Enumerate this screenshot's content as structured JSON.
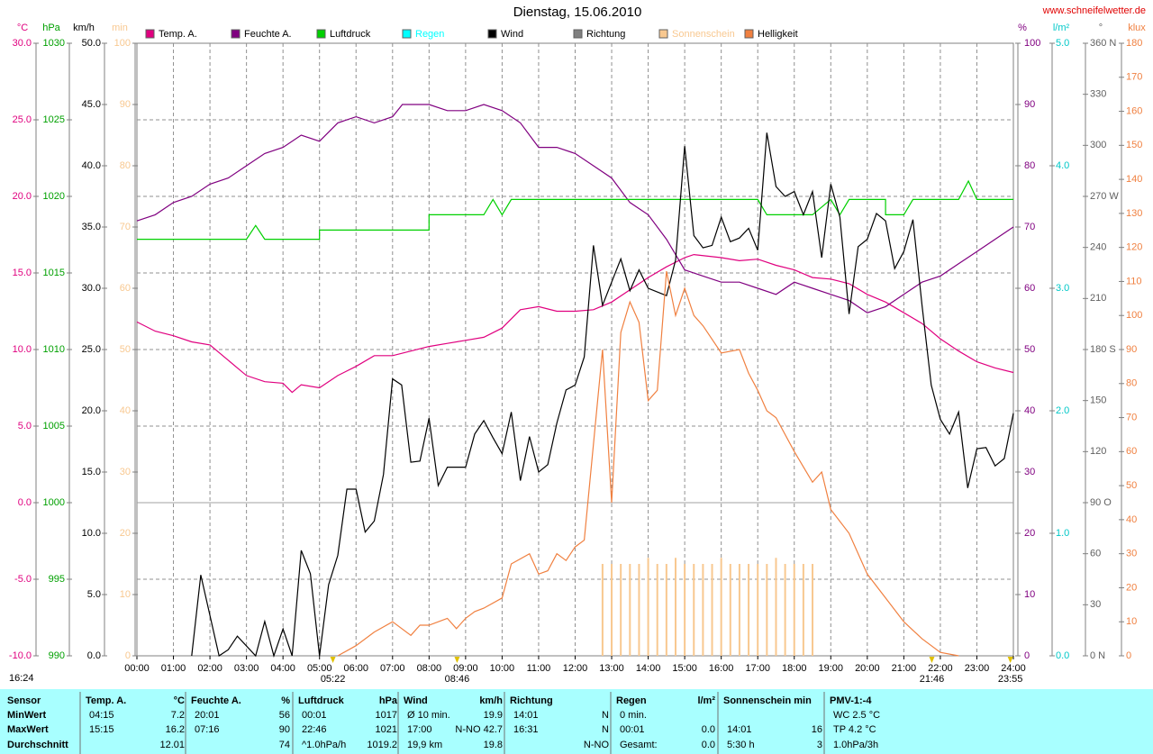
{
  "header": {
    "url": "www.schneifelwetter.de",
    "left_note": "16:24"
  },
  "chart_data": {
    "type": "line",
    "title": "Dienstag, 15.06.2010",
    "grid": true,
    "xlim": [
      0,
      24
    ],
    "xticks": [
      {
        "value": 0,
        "label": "00:00"
      },
      {
        "value": 1,
        "label": "01:00"
      },
      {
        "value": 2,
        "label": "02:00"
      },
      {
        "value": 3,
        "label": "03:00"
      },
      {
        "value": 4,
        "label": "04:00"
      },
      {
        "value": 5,
        "label": "05:00"
      },
      {
        "value": 6,
        "label": "06:00"
      },
      {
        "value": 7,
        "label": "07:00"
      },
      {
        "value": 8,
        "label": "08:00"
      },
      {
        "value": 9,
        "label": "09:00"
      },
      {
        "value": 10,
        "label": "10:00"
      },
      {
        "value": 11,
        "label": "11:00"
      },
      {
        "value": 12,
        "label": "12:00"
      },
      {
        "value": 13,
        "label": "13:00"
      },
      {
        "value": 14,
        "label": "14:00"
      },
      {
        "value": 15,
        "label": "15:00"
      },
      {
        "value": 16,
        "label": "16:00"
      },
      {
        "value": 17,
        "label": "17:00"
      },
      {
        "value": 18,
        "label": "18:00"
      },
      {
        "value": 19,
        "label": "19:00"
      },
      {
        "value": 20,
        "label": "20:00"
      },
      {
        "value": 21,
        "label": "21:00"
      },
      {
        "value": 22,
        "label": "22:00"
      },
      {
        "value": 23,
        "label": "23:00"
      },
      {
        "value": 24,
        "label": "24:00"
      }
    ],
    "axes": [
      {
        "unit": "°C",
        "color": "#e0007f",
        "lim": [
          -10,
          30
        ],
        "ticks": [
          {
            "value": -10,
            "label": "-10.0"
          },
          {
            "value": -5,
            "label": "-5.0"
          },
          {
            "value": 0,
            "label": "0.0"
          },
          {
            "value": 5,
            "label": "5.0"
          },
          {
            "value": 10,
            "label": "10.0"
          },
          {
            "value": 15,
            "label": "15.0"
          },
          {
            "value": 20,
            "label": "20.0"
          },
          {
            "value": 25,
            "label": "25.0"
          },
          {
            "value": 30,
            "label": "30.0"
          }
        ]
      },
      {
        "unit": "hPa",
        "color": "#00a000",
        "lim": [
          990,
          1030
        ],
        "ticks": [
          990,
          995,
          1000,
          1005,
          1010,
          1015,
          1020,
          1025,
          1030
        ]
      },
      {
        "unit": "km/h",
        "color": "#000000",
        "lim": [
          0,
          50
        ],
        "ticks": [
          {
            "value": 0,
            "label": "0.0"
          },
          {
            "value": 5,
            "label": "5.0"
          },
          {
            "value": 10,
            "label": "10.0"
          },
          {
            "value": 15,
            "label": "15.0"
          },
          {
            "value": 20,
            "label": "20.0"
          },
          {
            "value": 25,
            "label": "25.0"
          },
          {
            "value": 30,
            "label": "30.0"
          },
          {
            "value": 35,
            "label": "35.0"
          },
          {
            "value": 40,
            "label": "40.0"
          },
          {
            "value": 45,
            "label": "45.0"
          },
          {
            "value": 50,
            "label": "50.0"
          }
        ]
      },
      {
        "unit": "min",
        "color": "#f8c890",
        "lim": [
          0,
          100
        ],
        "ticks": [
          0,
          10,
          20,
          30,
          40,
          50,
          60,
          70,
          80,
          90,
          100
        ]
      },
      {
        "unit": "%",
        "color": "#800080",
        "lim": [
          0,
          100
        ],
        "ticks": [
          0,
          10,
          20,
          30,
          40,
          50,
          60,
          70,
          80,
          90,
          100
        ]
      },
      {
        "unit": "l/m²",
        "color": "#00c8c8",
        "lim": [
          0,
          5
        ],
        "ticks": [
          {
            "value": 0,
            "label": "0.0"
          },
          {
            "value": 1,
            "label": "1.0"
          },
          {
            "value": 2,
            "label": "2.0"
          },
          {
            "value": 3,
            "label": "3.0"
          },
          {
            "value": 4,
            "label": "4.0"
          },
          {
            "value": 5,
            "label": "5.0"
          }
        ]
      },
      {
        "unit": "°",
        "color": "#606060",
        "lim": [
          0,
          360
        ],
        "ticks": [
          {
            "value": 0,
            "label": "0  N"
          },
          30,
          60,
          {
            "value": 90,
            "label": "90  O"
          },
          120,
          150,
          {
            "value": 180,
            "label": "180  S"
          },
          210,
          240,
          {
            "value": 270,
            "label": "270  W"
          },
          300,
          330,
          {
            "value": 360,
            "label": "360  N"
          }
        ]
      },
      {
        "unit": "klux",
        "color": "#f08040",
        "lim": [
          0,
          180
        ],
        "ticks": [
          0,
          10,
          20,
          30,
          40,
          50,
          60,
          70,
          80,
          90,
          100,
          110,
          120,
          130,
          140,
          150,
          160,
          170,
          180
        ]
      }
    ],
    "series": [
      {
        "name": "Temp. A.",
        "color": "#e0007f",
        "axis": "°C",
        "x": [
          0,
          0.5,
          1,
          1.5,
          2,
          2.5,
          3,
          3.5,
          4,
          4.25,
          4.5,
          5,
          5.5,
          6,
          6.5,
          7,
          7.5,
          8,
          8.5,
          9,
          9.5,
          10,
          10.5,
          11,
          11.5,
          12,
          12.5,
          13,
          13.5,
          14,
          14.5,
          15,
          15.25,
          16,
          16.5,
          17,
          17.5,
          18,
          18.5,
          19,
          19.5,
          20,
          20.5,
          21,
          21.5,
          22,
          22.5,
          23,
          23.5,
          24
        ],
        "values": [
          11.8,
          11.2,
          10.9,
          10.5,
          10.3,
          9.3,
          8.3,
          7.9,
          7.8,
          7.2,
          7.7,
          7.5,
          8.3,
          8.9,
          9.6,
          9.6,
          9.9,
          10.2,
          10.4,
          10.6,
          10.8,
          11.4,
          12.6,
          12.8,
          12.5,
          12.5,
          12.6,
          13.1,
          13.9,
          14.7,
          15.4,
          16.0,
          16.2,
          16.0,
          15.8,
          15.9,
          15.5,
          15.2,
          14.7,
          14.6,
          14.3,
          13.6,
          13.1,
          12.4,
          11.7,
          10.7,
          9.9,
          9.2,
          8.8,
          8.5
        ]
      },
      {
        "name": "Feuchte A.",
        "color": "#800080",
        "axis": "%",
        "x": [
          0,
          0.5,
          1,
          1.5,
          2,
          2.5,
          3,
          3.5,
          4,
          4.5,
          5,
          5.5,
          6,
          6.5,
          7,
          7.27,
          8,
          8.5,
          9,
          9.5,
          10,
          10.5,
          11,
          11.5,
          12,
          12.5,
          13,
          13.5,
          14,
          14.5,
          15,
          15.5,
          16,
          16.5,
          17,
          17.5,
          18,
          18.5,
          19,
          19.5,
          20,
          20.5,
          21,
          21.5,
          22,
          22.5,
          23,
          23.5,
          24
        ],
        "values": [
          71,
          72,
          74,
          75,
          77,
          78,
          80,
          82,
          83,
          85,
          84,
          87,
          88,
          87,
          88,
          90,
          90,
          89,
          89,
          90,
          89,
          87,
          83,
          83,
          82,
          80,
          78,
          74,
          72,
          68,
          63,
          62,
          61,
          61,
          60,
          59,
          61,
          60,
          59,
          58,
          56,
          57,
          59,
          61,
          62,
          64,
          66,
          68,
          70
        ]
      },
      {
        "name": "Luftdruck",
        "color": "#00d000",
        "axis": "hPa",
        "x": [
          0,
          3,
          3.25,
          3.5,
          5,
          5,
          8,
          8,
          9.5,
          9.75,
          10,
          10.25,
          17,
          17.25,
          18.5,
          19,
          19.25,
          19.5,
          20.5,
          20.5,
          21,
          21.25,
          22.5,
          22.77,
          23,
          24
        ],
        "values": [
          1017.2,
          1017.2,
          1018.1,
          1017.2,
          1017.2,
          1017.8,
          1017.8,
          1018.8,
          1018.8,
          1019.8,
          1018.8,
          1019.8,
          1019.8,
          1018.8,
          1018.8,
          1019.8,
          1018.8,
          1019.8,
          1019.8,
          1018.8,
          1018.8,
          1019.8,
          1019.8,
          1021,
          1019.8,
          1019.8
        ]
      },
      {
        "name": "Regen",
        "color": "#00ffff",
        "axis": "l/m²",
        "x": [],
        "values": []
      },
      {
        "name": "Wind",
        "color": "#000000",
        "axis": "km/h",
        "x": [
          1.5,
          1.75,
          2.25,
          2.5,
          2.75,
          3.25,
          3.5,
          3.75,
          4,
          4.25,
          4.5,
          4.75,
          5,
          5.25,
          5.5,
          5.75,
          6,
          6.25,
          6.5,
          6.75,
          7,
          7.25,
          7.5,
          7.75,
          8,
          8.25,
          8.5,
          9,
          9.25,
          9.5,
          9.75,
          10,
          10.25,
          10.5,
          10.75,
          11,
          11.25,
          11.5,
          11.75,
          12,
          12.25,
          12.5,
          12.75,
          13,
          13.25,
          13.5,
          13.75,
          14,
          14.5,
          14.75,
          15,
          15.25,
          15.5,
          15.75,
          16,
          16.25,
          16.5,
          16.75,
          17,
          17.25,
          17.5,
          17.75,
          18,
          18.25,
          18.5,
          18.75,
          19,
          19.25,
          19.5,
          19.75,
          20,
          20.25,
          20.5,
          20.75,
          21,
          21.25,
          21.5,
          21.75,
          22,
          22.25,
          22.5,
          22.75,
          23,
          23.25,
          23.5,
          23.75,
          24
        ],
        "values": [
          0,
          6.6,
          0,
          0.5,
          1.6,
          0,
          2.8,
          0,
          2.2,
          0,
          8.6,
          6.7,
          0,
          5.8,
          8.2,
          13.6,
          13.6,
          10.1,
          11,
          14.8,
          22.6,
          22.1,
          15.8,
          15.9,
          19.4,
          13.9,
          15.4,
          15.4,
          18.1,
          19.2,
          17.8,
          16.5,
          19.9,
          14.3,
          17.9,
          15,
          15.6,
          19,
          21.7,
          22.1,
          24.4,
          33.5,
          28.6,
          30.5,
          32.4,
          29.8,
          31.5,
          30,
          29.4,
          32.3,
          41.6,
          34.3,
          33.3,
          33.5,
          35.8,
          33.8,
          34.1,
          34.9,
          33.1,
          42.7,
          38.3,
          37.5,
          37.9,
          36,
          37.9,
          32.5,
          38.5,
          35.8,
          27.9,
          33.4,
          34,
          36.1,
          35.5,
          31.6,
          33,
          35.6,
          28.6,
          22.1,
          19.3,
          18.1,
          19.9,
          13.7,
          16.9,
          17,
          15.5,
          16.1,
          19.8
        ]
      },
      {
        "name": "Richtung",
        "color": "#808080",
        "axis": "°",
        "x": [],
        "values": []
      },
      {
        "name": "Sonnenschein",
        "color": "#f8c890",
        "axis": "min",
        "style": "bars",
        "x": [
          12.75,
          13,
          13.25,
          13.5,
          13.75,
          14,
          14.25,
          14.5,
          14.75,
          15,
          15.25,
          15.5,
          15.75,
          16,
          16.25,
          16.5,
          16.75,
          17,
          17.25,
          17.5,
          17.75,
          18,
          18.25,
          18.5
        ],
        "values": [
          15,
          15,
          15,
          15,
          15,
          16,
          15,
          15,
          16,
          15,
          15,
          15,
          15,
          16,
          15,
          15,
          15,
          15,
          15,
          16,
          15,
          15,
          15,
          15
        ]
      },
      {
        "name": "Helligkeit",
        "color": "#f08040",
        "axis": "klux",
        "x": [
          5.5,
          6,
          6.5,
          7,
          7.5,
          7.75,
          8,
          8.5,
          8.75,
          9,
          9.25,
          9.5,
          10,
          10.25,
          10.75,
          11,
          11.25,
          11.5,
          11.75,
          12,
          12.25,
          12.75,
          13,
          13.25,
          13.5,
          13.75,
          14,
          14.25,
          14.5,
          14.75,
          15,
          15.25,
          15.5,
          16,
          16.5,
          16.75,
          17,
          17.25,
          17.5,
          18,
          18.5,
          18.75,
          19,
          19.5,
          20,
          20.5,
          21,
          21.5,
          22,
          22.5
        ],
        "values": [
          0,
          3,
          7,
          10,
          6,
          9,
          9,
          11,
          8,
          11,
          13,
          14,
          17,
          27,
          30,
          24,
          25,
          30,
          28,
          32,
          34,
          90,
          45,
          95,
          104,
          98,
          75,
          78,
          113,
          100,
          108,
          100,
          97,
          89,
          90,
          83,
          78,
          72,
          70,
          60,
          51,
          54,
          43,
          36,
          24,
          17,
          10,
          5,
          1,
          0
        ]
      }
    ],
    "annotations": [
      {
        "label": "05:22",
        "x": 5.367
      },
      {
        "label": "08:46",
        "x": 8.767
      },
      {
        "label": "21:46",
        "x": 21.767
      },
      {
        "label": "23:55",
        "x": 23.917
      }
    ]
  },
  "table": {
    "columns": [
      {
        "title": "Sensor",
        "rows": {
          "min": "MinWert",
          "max": "MaxWert",
          "avg": "Durchschnitt"
        }
      },
      {
        "title": "Temp. A.",
        "unit": "°C",
        "rows": {
          "min": {
            "time": "04:15",
            "value": "7.2"
          },
          "max": {
            "time": "15:15",
            "value": "16.2"
          },
          "avg": {
            "value": "12.01"
          }
        }
      },
      {
        "title": "Feuchte A.",
        "unit": "%",
        "rows": {
          "min": {
            "time": "20:01",
            "value": "56"
          },
          "max": {
            "time": "07:16",
            "value": "90"
          },
          "avg": {
            "value": "74"
          }
        }
      },
      {
        "title": "Luftdruck",
        "unit": "hPa",
        "rows": {
          "min": {
            "time": "00:01",
            "value": "1017"
          },
          "max": {
            "time": "22:46",
            "value": "1021"
          },
          "avg": {
            "time": "^1.0hPa/h",
            "value": "1019.2"
          }
        }
      },
      {
        "title": "Wind",
        "unit": "km/h",
        "rows": {
          "min": {
            "time": "Ø 10 min.",
            "value": "19.9"
          },
          "max": {
            "time": "17:00",
            "value": "N-NO 42.7"
          },
          "avg": {
            "time": "19,9 km",
            "value": "19.8"
          }
        }
      },
      {
        "title": "Richtung",
        "rows": {
          "min": {
            "time": "14:01",
            "value": "N"
          },
          "max": {
            "time": "16:31",
            "value": "N"
          },
          "avg": {
            "value": "N-NO"
          }
        }
      },
      {
        "title": "Regen",
        "unit": "l/m²",
        "rows": {
          "min": {
            "time": "0 min."
          },
          "max": {
            "time": "00:01",
            "value": "0.0"
          },
          "avg": {
            "time": "Gesamt:",
            "value": "0.0"
          }
        }
      },
      {
        "title": "Sonnenschein min",
        "rows": {
          "max": {
            "time": "14:01",
            "value": "16"
          },
          "avg": {
            "time": "5:30 h",
            "value": "3"
          }
        }
      },
      {
        "title": "PMV-1:-4",
        "rows": {
          "min": {
            "time": "WC 2.5 °C"
          },
          "max": {
            "time": "TP 4.2 °C"
          },
          "avg": {
            "time": "1.0hPa/3h"
          }
        }
      }
    ]
  }
}
